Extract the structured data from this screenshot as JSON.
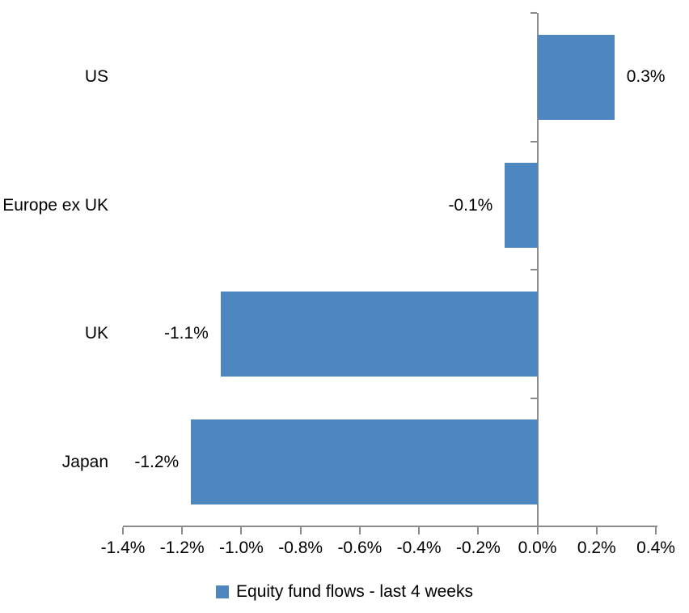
{
  "chart_data": {
    "type": "bar",
    "orientation": "horizontal",
    "title": "",
    "categories": [
      "US",
      "Europe ex UK",
      "UK",
      "Japan"
    ],
    "values": [
      0.26,
      -0.11,
      -1.07,
      -1.17
    ],
    "data_labels": [
      "0.3%",
      "-0.1%",
      "-1.1%",
      "-1.2%"
    ],
    "series_name": "Equity fund flows - last 4 weeks",
    "xlim": [
      -1.4,
      0.4
    ],
    "x_tick_step": 0.2,
    "x_tick_labels": [
      "-1.4%",
      "-1.2%",
      "-1.0%",
      "-0.8%",
      "-0.6%",
      "-0.4%",
      "-0.2%",
      "0.0%",
      "0.2%",
      "0.4%"
    ],
    "grid": false,
    "legend_position": "bottom",
    "bar_color": "#4E87BF",
    "axis_color": "#8C8C8C",
    "text_color": "#000000"
  }
}
